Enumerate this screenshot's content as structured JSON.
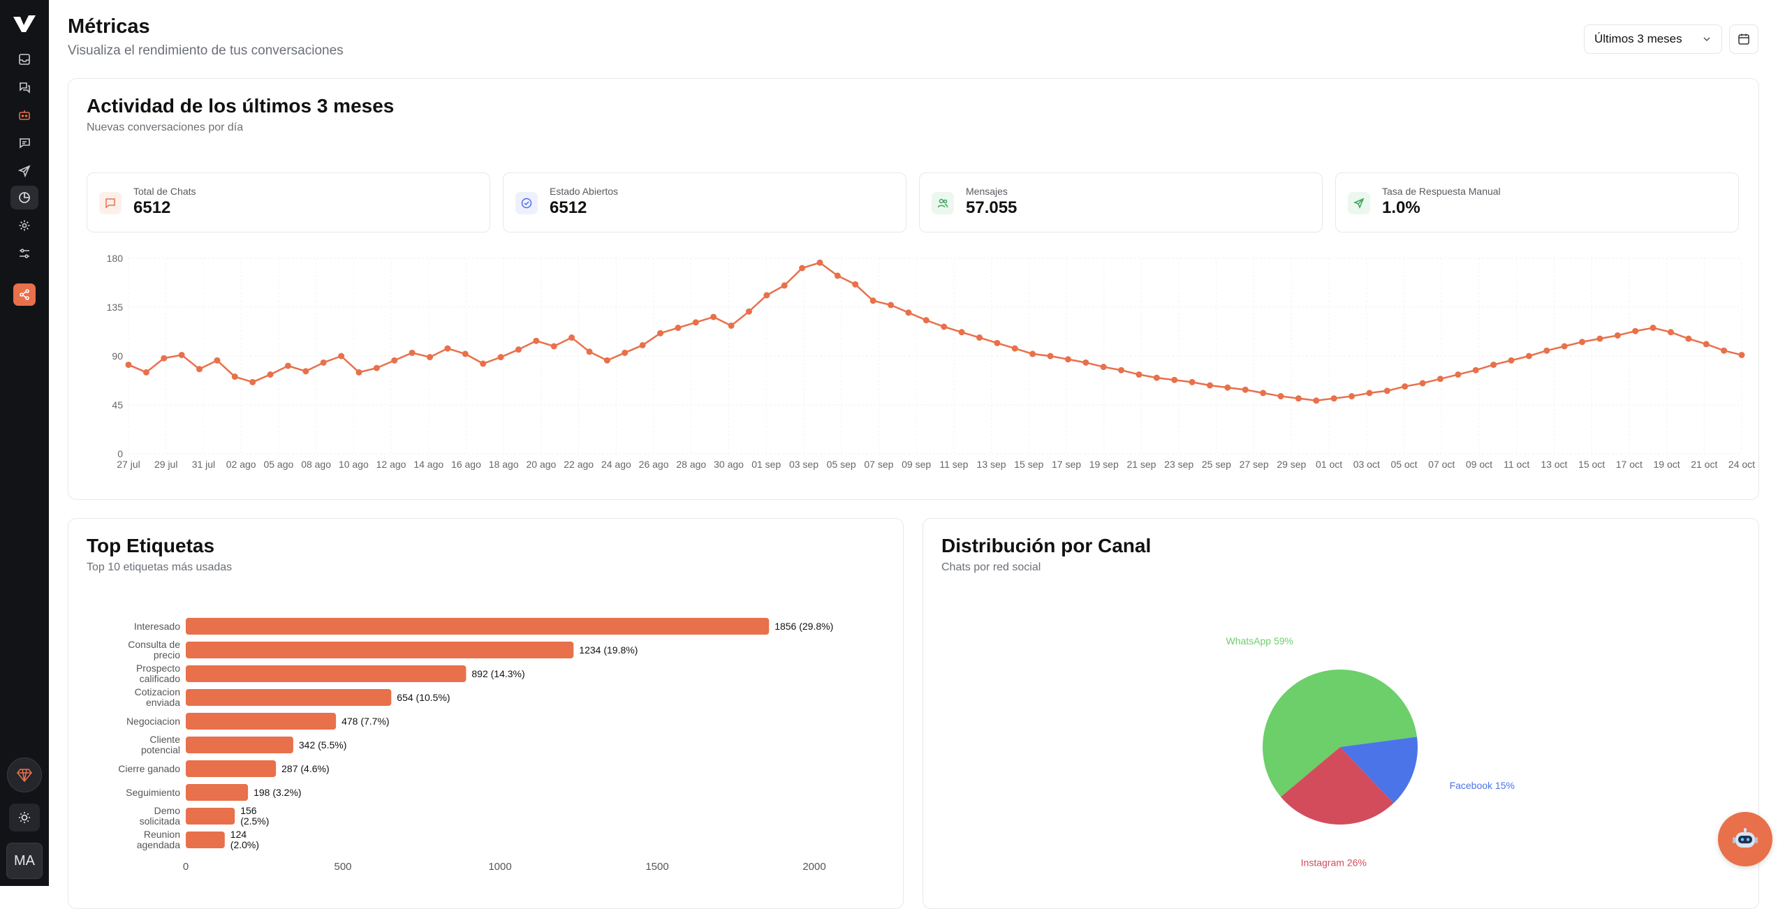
{
  "header": {
    "title": "Métricas",
    "subtitle": "Visualiza el rendimiento de tus conversaciones",
    "range_value": "Últimos 3 meses"
  },
  "sidebar": {
    "icons": [
      "logo-icon",
      "inbox-icon",
      "chats-icon",
      "bot-icon",
      "message-icon",
      "send-icon",
      "metrics-icon",
      "settings-icon",
      "sliders-icon",
      "share-icon",
      "gem-icon",
      "sun-icon"
    ],
    "avatar_initials": "MA"
  },
  "activity": {
    "title": "Actividad de los últimos 3 meses",
    "subtitle": "Nuevas conversaciones por día",
    "stats": [
      {
        "label": "Total de Chats",
        "value": "6512",
        "icon": "chat-icon",
        "color": "#e8704a"
      },
      {
        "label": "Estado Abiertos",
        "value": "6512",
        "icon": "check-circle-icon",
        "color": "#4a6cf0"
      },
      {
        "label": "Mensajes",
        "value": "57.055",
        "icon": "users-icon",
        "color": "#3ba55c"
      },
      {
        "label": "Tasa de Respuesta Manual",
        "value": "1.0%",
        "icon": "send-icon",
        "color": "#3ba55c"
      }
    ]
  },
  "tags": {
    "title": "Top Etiquetas",
    "subtitle": "Top 10 etiquetas más usadas"
  },
  "channels": {
    "title": "Distribución por Canal",
    "subtitle": "Chats por red social"
  },
  "chart_data": [
    {
      "type": "line",
      "color": "#e8704a",
      "ylim": [
        0,
        180
      ],
      "yticks": [
        0,
        45,
        90,
        135,
        180
      ],
      "grid": true,
      "x_tick_labels": [
        "27 jul",
        "29 jul",
        "31 jul",
        "02 ago",
        "05 ago",
        "08 ago",
        "10 ago",
        "12 ago",
        "14 ago",
        "16 ago",
        "18 ago",
        "20 ago",
        "22 ago",
        "24 ago",
        "26 ago",
        "28 ago",
        "30 ago",
        "01 sep",
        "03 sep",
        "05 sep",
        "07 sep",
        "09 sep",
        "11 sep",
        "13 sep",
        "15 sep",
        "17 sep",
        "19 sep",
        "21 sep",
        "23 sep",
        "25 sep",
        "27 sep",
        "29 sep",
        "01 oct",
        "03 oct",
        "05 oct",
        "07 oct",
        "09 oct",
        "11 oct",
        "13 oct",
        "15 oct",
        "17 oct",
        "19 oct",
        "21 oct",
        "24 oct"
      ],
      "values": [
        82,
        75,
        88,
        91,
        78,
        86,
        71,
        66,
        73,
        81,
        76,
        84,
        90,
        75,
        79,
        86,
        93,
        89,
        97,
        92,
        83,
        89,
        96,
        104,
        99,
        107,
        94,
        86,
        93,
        100,
        111,
        116,
        121,
        126,
        118,
        131,
        146,
        155,
        171,
        176,
        164,
        156,
        141,
        137,
        130,
        123,
        117,
        112,
        107,
        102,
        97,
        92,
        90,
        87,
        84,
        80,
        77,
        73,
        70,
        68,
        66,
        63,
        61,
        59,
        56,
        53,
        51,
        49,
        51,
        53,
        56,
        58,
        62,
        65,
        69,
        73,
        77,
        82,
        86,
        90,
        95,
        99,
        103,
        106,
        109,
        113,
        116,
        112,
        106,
        101,
        95,
        91
      ]
    },
    {
      "type": "bar",
      "orientation": "horizontal",
      "color": "#e8704a",
      "categories": [
        "Interesado",
        "Consulta de precio",
        "Prospecto calificado",
        "Cotizacion enviada",
        "Negociacion",
        "Cliente potencial",
        "Cierre ganado",
        "Seguimiento",
        "Demo solicitada",
        "Reunion agendada"
      ],
      "values": [
        1856,
        1234,
        892,
        654,
        478,
        342,
        287,
        198,
        156,
        124
      ],
      "labels": [
        "1856 (29.8%)",
        "1234 (19.8%)",
        "892 (14.3%)",
        "654 (10.5%)",
        "478 (7.7%)",
        "342 (5.5%)",
        "287 (4.6%)",
        "198 (3.2%)",
        "156 (2.5%)",
        "124 (2.0%)"
      ],
      "xlim": [
        0,
        2000
      ],
      "xticks": [
        0,
        500,
        1000,
        1500,
        2000
      ]
    },
    {
      "type": "pie",
      "slices": [
        {
          "name": "WhatsApp",
          "value": 59,
          "label": "WhatsApp 59%",
          "color": "#6ccf6a"
        },
        {
          "name": "Facebook",
          "value": 15,
          "label": "Facebook 15%",
          "color": "#4a74e8"
        },
        {
          "name": "Instagram",
          "value": 26,
          "label": "Instagram 26%",
          "color": "#d24c5c"
        }
      ]
    }
  ]
}
